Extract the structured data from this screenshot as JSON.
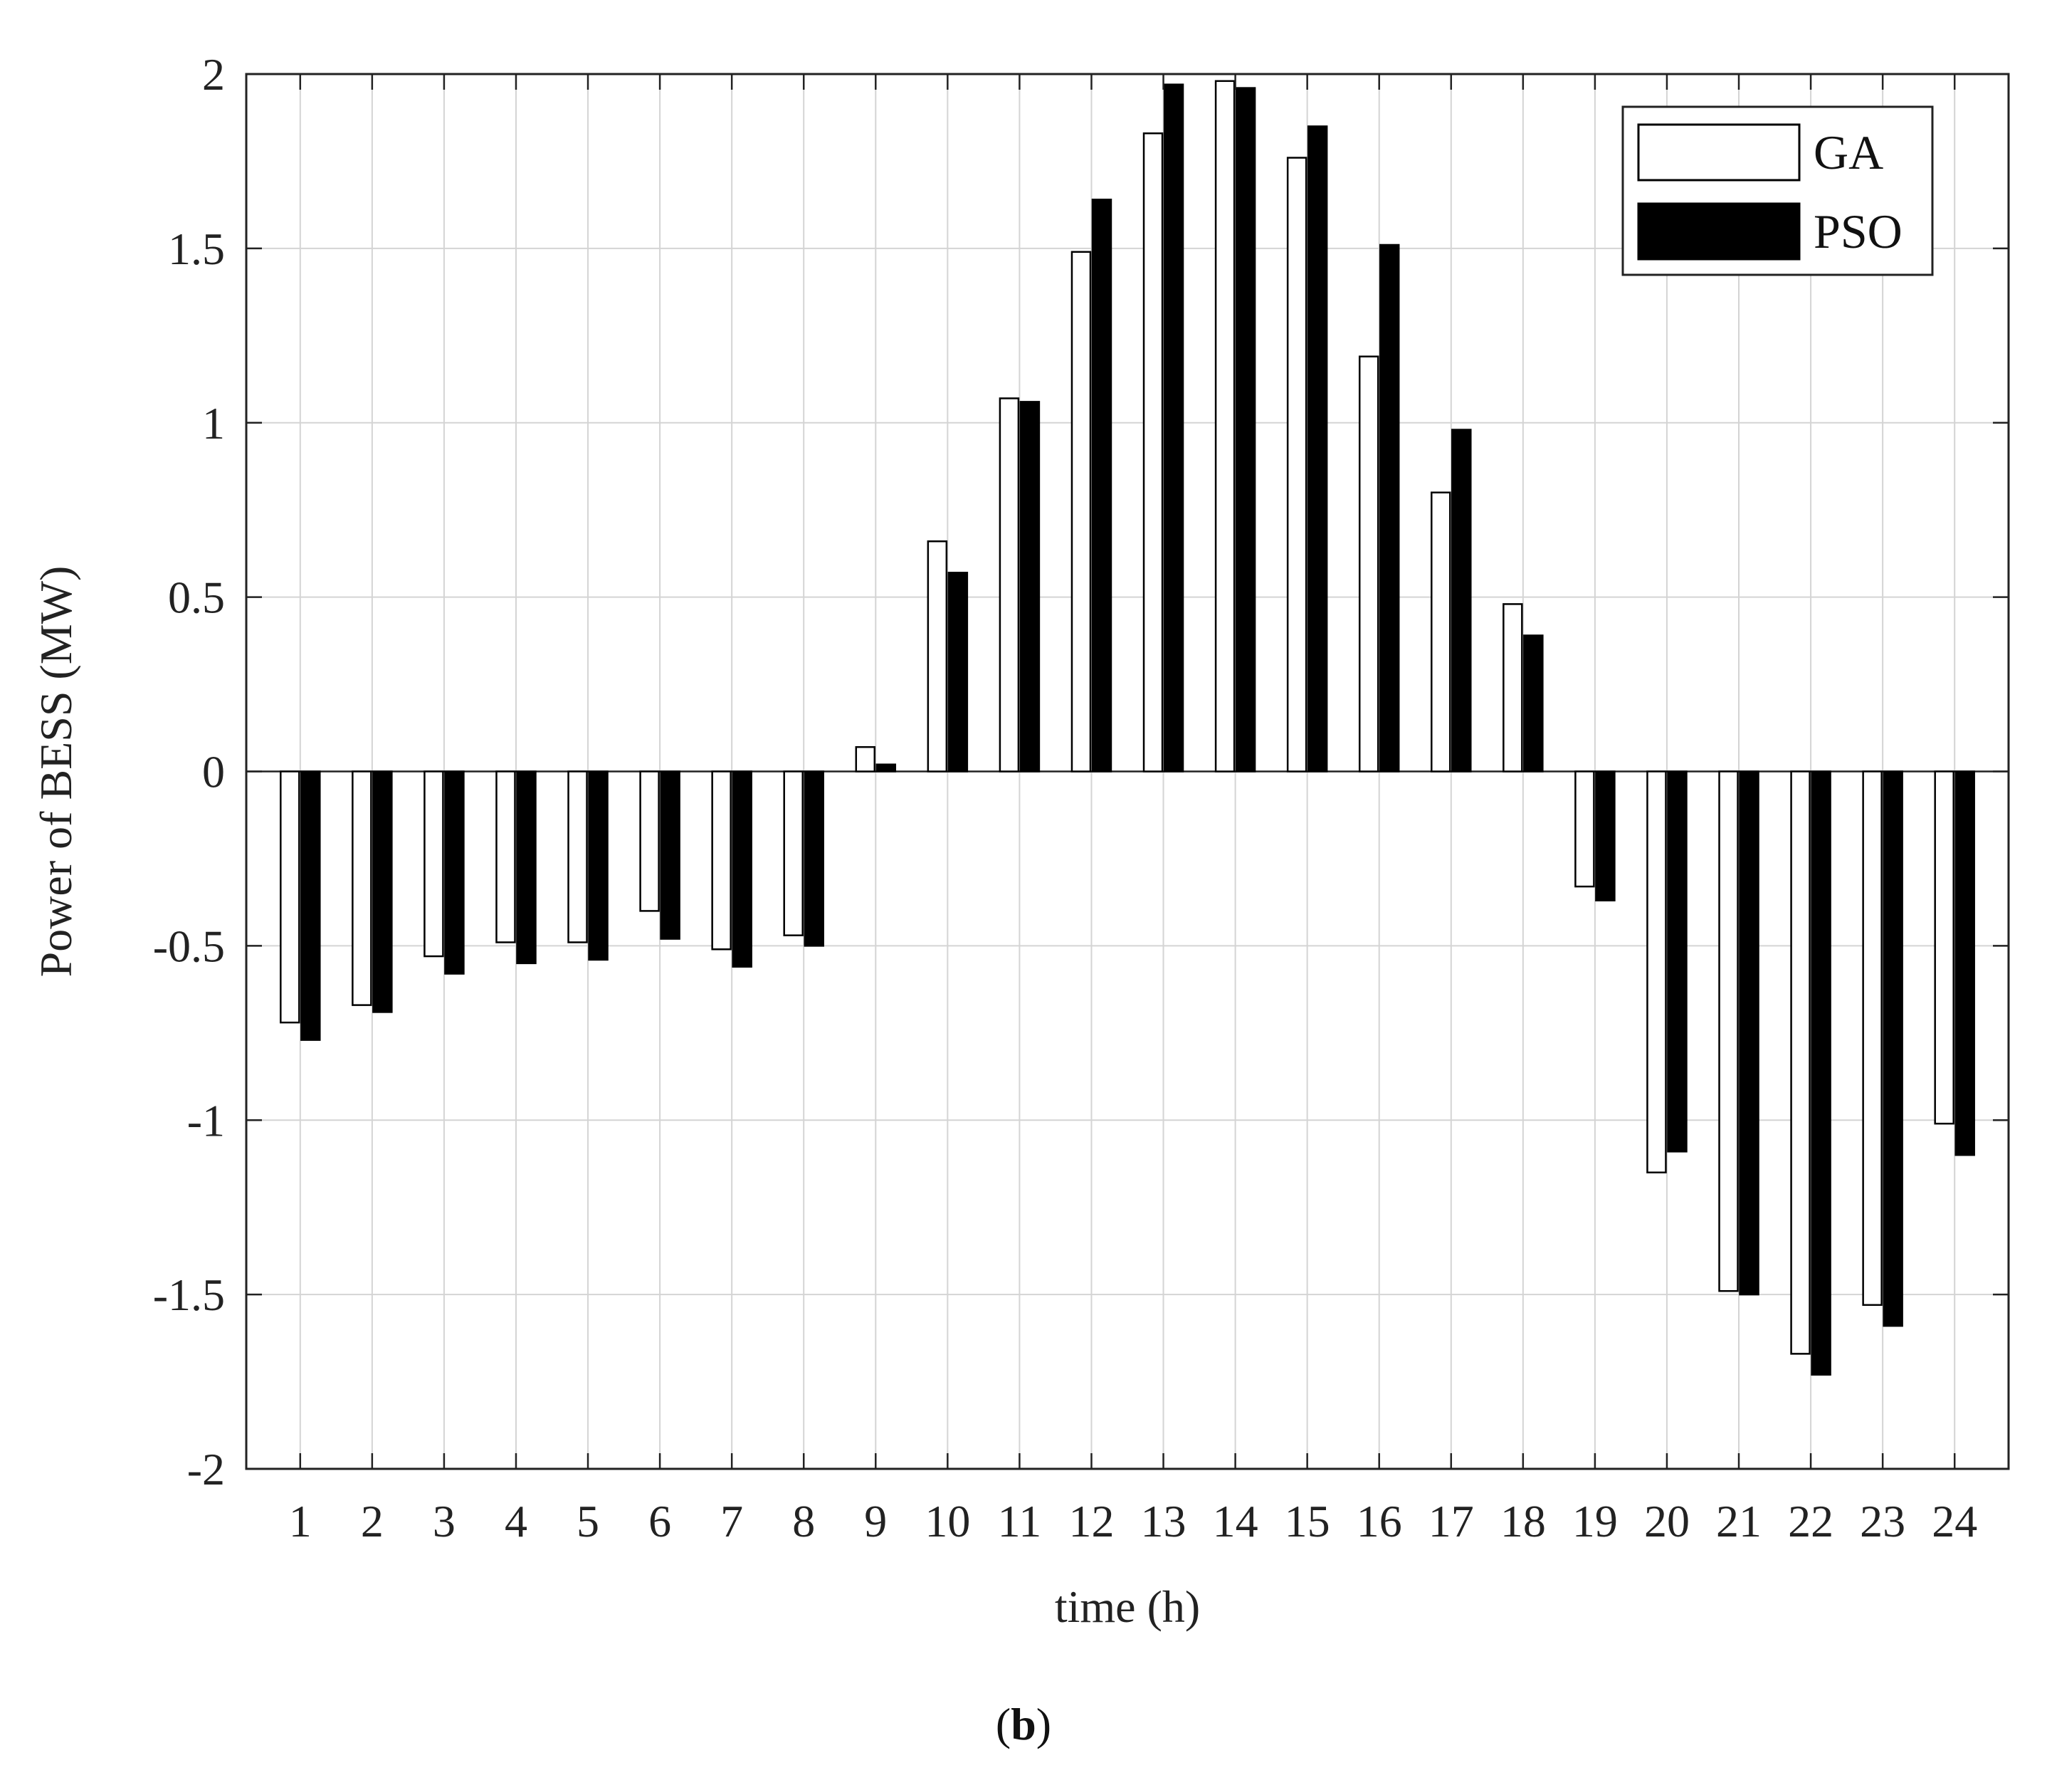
{
  "chart_data": {
    "type": "bar",
    "title": "",
    "xlabel": "time (h)",
    "ylabel": "Power of BESS (MW)",
    "categories": [
      "1",
      "2",
      "3",
      "4",
      "5",
      "6",
      "7",
      "8",
      "9",
      "10",
      "11",
      "12",
      "13",
      "14",
      "15",
      "16",
      "17",
      "18",
      "19",
      "20",
      "21",
      "22",
      "23",
      "24"
    ],
    "series": [
      {
        "name": "GA",
        "color": "#ffffff",
        "values": [
          -0.72,
          -0.67,
          -0.53,
          -0.49,
          -0.49,
          -0.4,
          -0.51,
          -0.47,
          0.07,
          0.66,
          1.07,
          1.49,
          1.83,
          1.98,
          1.76,
          1.19,
          0.8,
          0.48,
          -0.33,
          -1.15,
          -1.49,
          -1.67,
          -1.53,
          -1.01
        ]
      },
      {
        "name": "PSO",
        "color": "#000000",
        "values": [
          -0.77,
          -0.69,
          -0.58,
          -0.55,
          -0.54,
          -0.48,
          -0.56,
          -0.5,
          0.02,
          0.57,
          1.06,
          1.64,
          1.97,
          1.96,
          1.85,
          1.51,
          0.98,
          0.39,
          -0.37,
          -1.09,
          -1.5,
          -1.73,
          -1.59,
          -1.1
        ]
      }
    ],
    "ylim": [
      -2,
      2
    ],
    "yticks": [
      "-2",
      "-1.5",
      "-1",
      "-0.5",
      "0",
      "0.5",
      "1",
      "1.5",
      "2"
    ],
    "grid": true,
    "legend_position": "top-right"
  },
  "caption": {
    "open": "(",
    "letter": "b",
    "close": ")"
  }
}
